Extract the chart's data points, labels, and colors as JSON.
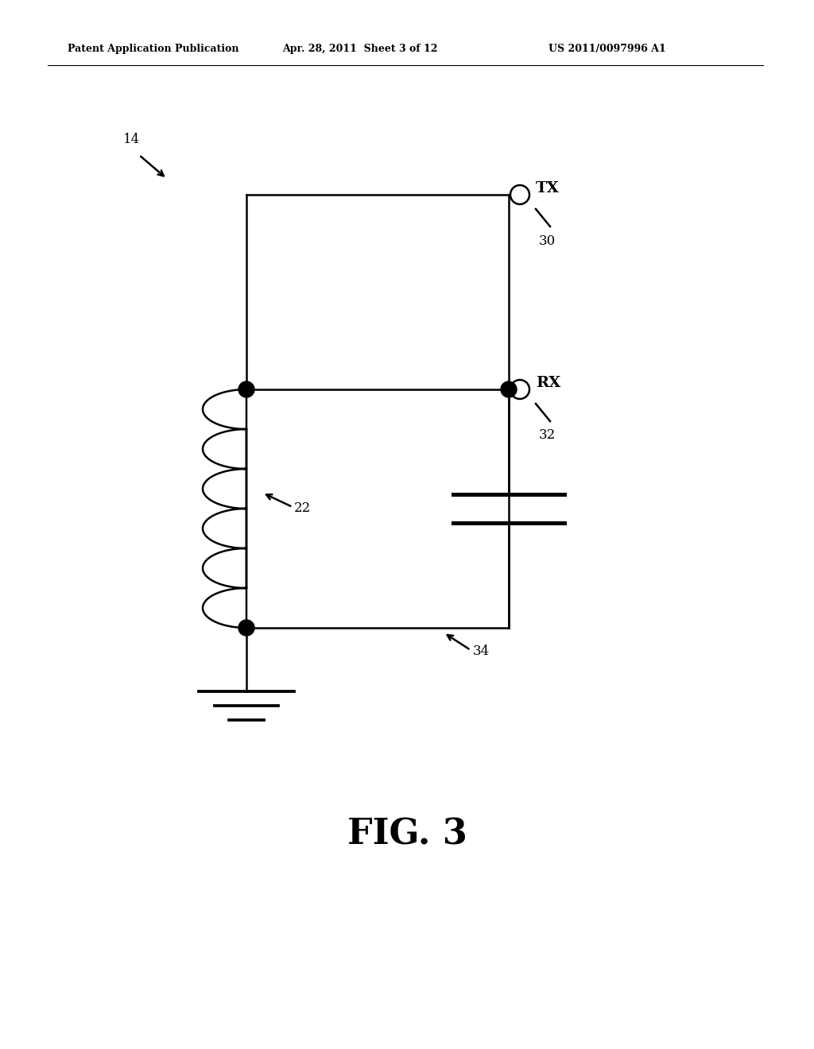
{
  "header_left": "Patent Application Publication",
  "header_center": "Apr. 28, 2011  Sheet 3 of 12",
  "header_right": "US 2011/0097996 A1",
  "figure_label": "FIG. 3",
  "label_14": "14",
  "label_22": "22",
  "label_30": "30",
  "label_32": "32",
  "label_34": "34",
  "label_TX": "TX",
  "label_RX": "RX",
  "line_color": "#000000",
  "bg_color": "#ffffff",
  "lw": 1.8
}
